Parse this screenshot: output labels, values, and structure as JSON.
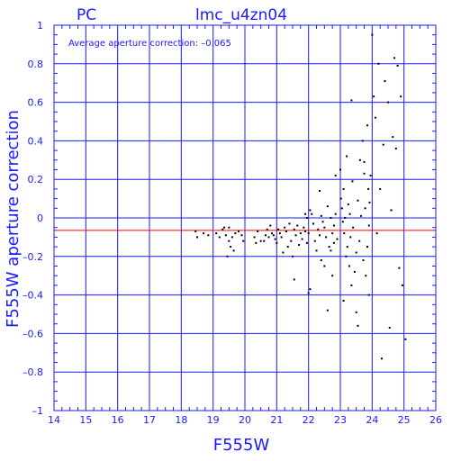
{
  "chart_data": {
    "type": "scatter",
    "title": "lmc_u4zn04",
    "camera": "PC",
    "xlabel": "F555W",
    "ylabel": "F555W aperture correction",
    "annotation": "Average aperture correction: –0.065",
    "xlim": [
      14,
      26
    ],
    "ylim": [
      -1,
      1
    ],
    "xticks": [
      "14",
      "15",
      "16",
      "17",
      "18",
      "19",
      "20",
      "21",
      "22",
      "23",
      "24",
      "25",
      "26"
    ],
    "yticks": [
      "1",
      "0.8",
      "0.6",
      "0.4",
      "0.2",
      "0",
      "–0.2",
      "–0.4",
      "–0.6",
      "–0.8",
      "–1"
    ],
    "xtick_values": [
      14,
      15,
      16,
      17,
      18,
      19,
      20,
      21,
      22,
      23,
      24,
      25,
      26
    ],
    "ytick_values": [
      1,
      0.8,
      0.6,
      0.4,
      0.2,
      0,
      -0.2,
      -0.4,
      -0.6,
      -0.8,
      -1
    ],
    "reference_line": {
      "y": -0.065,
      "color": "#ff0000"
    },
    "grid": true,
    "colors": {
      "axes": "#1a1aff",
      "points": "#000000",
      "reference": "#ff0000"
    },
    "points": [
      [
        18.45,
        -0.07
      ],
      [
        18.5,
        -0.1
      ],
      [
        18.7,
        -0.08
      ],
      [
        18.85,
        -0.09
      ],
      [
        19.1,
        -0.08
      ],
      [
        19.2,
        -0.1
      ],
      [
        19.3,
        -0.06
      ],
      [
        19.35,
        -0.05
      ],
      [
        19.4,
        -0.09
      ],
      [
        19.45,
        -0.2
      ],
      [
        19.5,
        -0.05
      ],
      [
        19.5,
        -0.12
      ],
      [
        19.55,
        -0.15
      ],
      [
        19.6,
        -0.1
      ],
      [
        19.65,
        -0.17
      ],
      [
        19.7,
        -0.08
      ],
      [
        19.8,
        -0.07
      ],
      [
        19.9,
        -0.09
      ],
      [
        19.95,
        -0.12
      ],
      [
        20.3,
        -0.1
      ],
      [
        20.35,
        -0.13
      ],
      [
        20.4,
        -0.07
      ],
      [
        20.5,
        -0.12
      ],
      [
        20.6,
        -0.12
      ],
      [
        20.65,
        -0.09
      ],
      [
        20.7,
        -0.06
      ],
      [
        20.75,
        -0.1
      ],
      [
        20.8,
        -0.04
      ],
      [
        20.85,
        -0.08
      ],
      [
        20.9,
        -0.09
      ],
      [
        20.95,
        -0.11
      ],
      [
        21.0,
        -0.13
      ],
      [
        21.05,
        -0.06
      ],
      [
        21.1,
        -0.08
      ],
      [
        21.15,
        -0.1
      ],
      [
        21.2,
        -0.18
      ],
      [
        21.25,
        -0.05
      ],
      [
        21.3,
        -0.07
      ],
      [
        21.35,
        -0.15
      ],
      [
        21.4,
        -0.03
      ],
      [
        21.45,
        -0.12
      ],
      [
        21.5,
        -0.2
      ],
      [
        21.55,
        -0.06
      ],
      [
        21.6,
        -0.09
      ],
      [
        21.65,
        -0.04
      ],
      [
        21.7,
        -0.14
      ],
      [
        21.75,
        -0.08
      ],
      [
        21.8,
        -0.11
      ],
      [
        21.85,
        -0.05
      ],
      [
        21.9,
        -0.07
      ],
      [
        21.95,
        -0.13
      ],
      [
        21.55,
        -0.32
      ],
      [
        21.9,
        0.02
      ],
      [
        21.95,
        0.0
      ],
      [
        22.0,
        -0.08
      ],
      [
        22.05,
        0.04
      ],
      [
        22.1,
        0.02
      ],
      [
        22.15,
        -0.03
      ],
      [
        22.2,
        -0.12
      ],
      [
        22.25,
        -0.17
      ],
      [
        22.3,
        -0.06
      ],
      [
        22.35,
        -0.09
      ],
      [
        22.4,
        0.01
      ],
      [
        22.45,
        -0.02
      ],
      [
        22.5,
        -0.05
      ],
      [
        22.55,
        -0.1
      ],
      [
        22.6,
        0.06
      ],
      [
        22.65,
        -0.15
      ],
      [
        22.7,
        0.0
      ],
      [
        22.75,
        -0.08
      ],
      [
        22.8,
        -0.04
      ],
      [
        22.85,
        0.02
      ],
      [
        22.9,
        -0.11
      ],
      [
        22.0,
        -0.39
      ],
      [
        22.05,
        -0.37
      ],
      [
        22.35,
        0.14
      ],
      [
        22.4,
        -0.22
      ],
      [
        22.5,
        -0.25
      ],
      [
        22.6,
        -0.48
      ],
      [
        22.7,
        -0.17
      ],
      [
        22.75,
        -0.3
      ],
      [
        22.8,
        -0.13
      ],
      [
        22.85,
        0.22
      ],
      [
        23.0,
        0.25
      ],
      [
        23.02,
        0.1
      ],
      [
        23.05,
        0.05
      ],
      [
        23.08,
        -0.02
      ],
      [
        23.1,
        0.15
      ],
      [
        23.12,
        -0.08
      ],
      [
        23.15,
        0.0
      ],
      [
        23.18,
        -0.2
      ],
      [
        23.2,
        0.32
      ],
      [
        23.22,
        -0.15
      ],
      [
        23.25,
        0.07
      ],
      [
        23.28,
        -0.25
      ],
      [
        23.3,
        0.02
      ],
      [
        23.32,
        -0.1
      ],
      [
        23.35,
        -0.35
      ],
      [
        23.38,
        0.19
      ],
      [
        23.4,
        -0.05
      ],
      [
        23.45,
        -0.28
      ],
      [
        23.5,
        -0.18
      ],
      [
        23.55,
        0.09
      ],
      [
        23.6,
        -0.12
      ],
      [
        23.62,
        0.3
      ],
      [
        23.65,
        0.01
      ],
      [
        23.7,
        0.4
      ],
      [
        23.72,
        -0.22
      ],
      [
        23.75,
        0.23
      ],
      [
        23.78,
        0.05
      ],
      [
        23.8,
        -0.3
      ],
      [
        23.85,
        -0.15
      ],
      [
        23.88,
        0.15
      ],
      [
        23.9,
        -0.04
      ],
      [
        23.92,
        0.08
      ],
      [
        23.1,
        -0.43
      ],
      [
        23.35,
        0.61
      ],
      [
        23.5,
        -0.49
      ],
      [
        23.55,
        -0.56
      ],
      [
        23.75,
        0.29
      ],
      [
        23.85,
        0.48
      ],
      [
        23.9,
        -0.4
      ],
      [
        23.95,
        0.22
      ],
      [
        24.0,
        0.95
      ],
      [
        24.05,
        0.63
      ],
      [
        24.1,
        0.52
      ],
      [
        24.15,
        -0.08
      ],
      [
        24.2,
        0.8
      ],
      [
        24.25,
        0.15
      ],
      [
        24.3,
        -0.73
      ],
      [
        24.35,
        0.38
      ],
      [
        24.4,
        0.71
      ],
      [
        24.5,
        0.6
      ],
      [
        24.55,
        -0.57
      ],
      [
        24.6,
        0.04
      ],
      [
        24.65,
        0.42
      ],
      [
        24.7,
        0.83
      ],
      [
        24.75,
        0.36
      ],
      [
        24.8,
        0.79
      ],
      [
        24.85,
        -0.26
      ],
      [
        24.9,
        0.63
      ],
      [
        24.95,
        -0.35
      ],
      [
        25.05,
        -0.63
      ]
    ]
  }
}
